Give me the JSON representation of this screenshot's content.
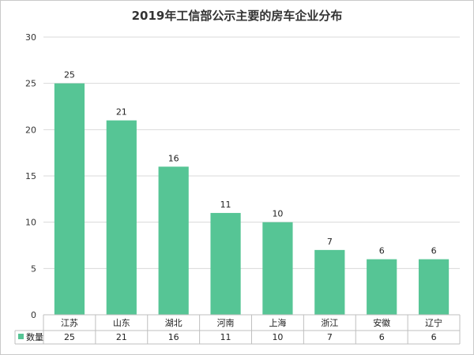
{
  "chart_data": {
    "type": "bar",
    "title": "2019年工信部公示主要的房车企业分布",
    "categories": [
      "江苏",
      "山东",
      "湖北",
      "河南",
      "上海",
      "浙江",
      "安徽",
      "辽宁"
    ],
    "series": [
      {
        "name": "数量",
        "values": [
          25,
          21,
          16,
          11,
          10,
          7,
          6,
          6
        ],
        "color": "#56c595"
      }
    ],
    "ylim": [
      0,
      30
    ],
    "yticks": [
      0,
      5,
      10,
      15,
      20,
      25,
      30
    ],
    "grid": true,
    "data_labels": true,
    "data_table": true
  }
}
